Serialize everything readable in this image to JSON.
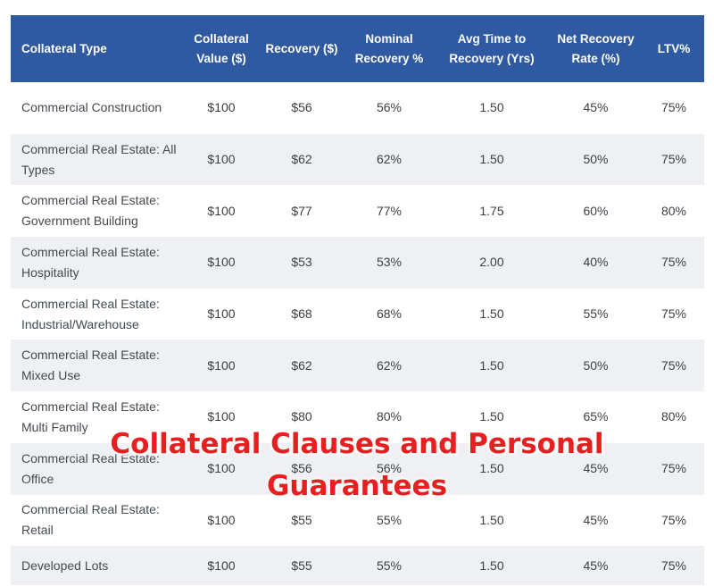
{
  "table": {
    "headers": [
      "Collateral Type",
      "Collateral Value ($)",
      "Recovery ($)",
      "Nominal Recovery %",
      "Avg Time to Recovery (Yrs)",
      "Net Recovery Rate (%)",
      "LTV%"
    ],
    "rows": [
      [
        "Commercial Construction",
        "$100",
        "$56",
        "56%",
        "1.50",
        "45%",
        "75%"
      ],
      [
        "Commercial Real Estate: All Types",
        "$100",
        "$62",
        "62%",
        "1.50",
        "50%",
        "75%"
      ],
      [
        "Commercial Real Estate: Government Building",
        "$100",
        "$77",
        "77%",
        "1.75",
        "60%",
        "80%"
      ],
      [
        "Commercial Real Estate: Hospitality",
        "$100",
        "$53",
        "53%",
        "2.00",
        "40%",
        "75%"
      ],
      [
        "Commercial Real Estate: Industrial/Warehouse",
        "$100",
        "$68",
        "68%",
        "1.50",
        "55%",
        "75%"
      ],
      [
        "Commercial Real Estate: Mixed Use",
        "$100",
        "$62",
        "62%",
        "1.50",
        "50%",
        "75%"
      ],
      [
        "Commercial Real Estate: Multi Family",
        "$100",
        "$80",
        "80%",
        "1.50",
        "65%",
        "80%"
      ],
      [
        "Commercial Real Estate: Office",
        "$100",
        "$56",
        "56%",
        "1.50",
        "45%",
        "75%"
      ],
      [
        "Commercial Real Estate: Retail",
        "$100",
        "$55",
        "55%",
        "1.50",
        "45%",
        "75%"
      ],
      [
        "Developed Lots",
        "$100",
        "$55",
        "55%",
        "1.50",
        "45%",
        "75%"
      ]
    ]
  },
  "overlay": {
    "line1": "Collateral Clauses and Personal",
    "line2": "Guarantees"
  },
  "colors": {
    "header_bg": "#2f59a0",
    "row_alt_bg": "#eff0f3",
    "overlay_text": "#e62020"
  }
}
